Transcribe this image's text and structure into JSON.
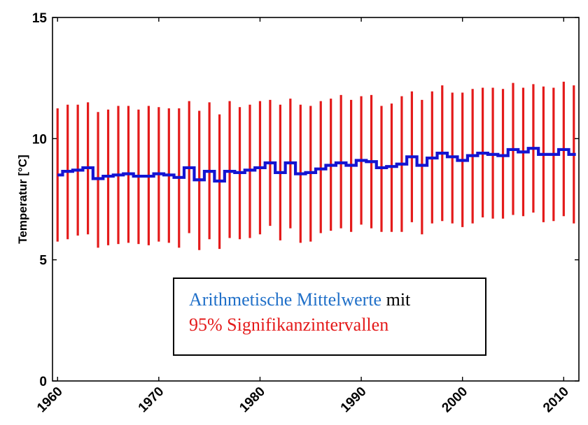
{
  "chart_data": {
    "type": "line",
    "xlabel": "",
    "ylabel": "Temperatur [°C]",
    "xlim": [
      1959.5,
      2011.5
    ],
    "ylim": [
      0,
      15
    ],
    "xticks": [
      "1960",
      "1970",
      "1980",
      "1990",
      "2000",
      "2010"
    ],
    "yticks": [
      "0",
      "5",
      "10",
      "15"
    ],
    "grid": false,
    "legend_position": "bottom-center",
    "legend": {
      "line1_blue": "Arithmetische Mittelwerte",
      "line1_black": " mit",
      "line2_red": "95% Signifikanzintervallen"
    },
    "colors": {
      "mean": "#1414d2",
      "interval": "#e41a1a",
      "legend_blue": "#1f6fc8",
      "legend_red": "#e41a1a"
    },
    "x": [
      1960,
      1961,
      1962,
      1963,
      1964,
      1965,
      1966,
      1967,
      1968,
      1969,
      1970,
      1971,
      1972,
      1973,
      1974,
      1975,
      1976,
      1977,
      1978,
      1979,
      1980,
      1981,
      1982,
      1983,
      1984,
      1985,
      1986,
      1987,
      1988,
      1989,
      1990,
      1991,
      1992,
      1993,
      1994,
      1995,
      1996,
      1997,
      1998,
      1999,
      2000,
      2001,
      2002,
      2003,
      2004,
      2005,
      2006,
      2007,
      2008,
      2009,
      2010,
      2011
    ],
    "series": [
      {
        "role": "mean",
        "values": [
          8.5,
          8.65,
          8.7,
          8.8,
          8.35,
          8.45,
          8.5,
          8.55,
          8.45,
          8.45,
          8.55,
          8.5,
          8.4,
          8.8,
          8.3,
          8.65,
          8.25,
          8.65,
          8.6,
          8.7,
          8.8,
          9.0,
          8.6,
          9.0,
          8.55,
          8.6,
          8.75,
          8.9,
          9.0,
          8.9,
          9.1,
          9.05,
          8.8,
          8.85,
          8.95,
          9.25,
          8.9,
          9.2,
          9.4,
          9.25,
          9.1,
          9.3,
          9.4,
          9.35,
          9.3,
          9.55,
          9.45,
          9.6,
          9.35,
          9.35,
          9.55,
          9.35
        ]
      },
      {
        "role": "interval_lower",
        "values": [
          5.75,
          5.85,
          6.0,
          6.05,
          5.5,
          5.6,
          5.65,
          5.7,
          5.65,
          5.6,
          5.75,
          5.7,
          5.5,
          6.1,
          5.4,
          5.85,
          5.45,
          5.9,
          5.85,
          5.9,
          6.05,
          6.4,
          5.8,
          6.3,
          5.7,
          5.75,
          6.1,
          6.2,
          6.3,
          6.15,
          6.45,
          6.3,
          6.15,
          6.15,
          6.15,
          6.55,
          6.05,
          6.5,
          6.6,
          6.5,
          6.35,
          6.5,
          6.75,
          6.7,
          6.7,
          6.85,
          6.8,
          6.95,
          6.55,
          6.6,
          6.8,
          6.5
        ]
      },
      {
        "role": "interval_upper",
        "values": [
          11.25,
          11.4,
          11.4,
          11.5,
          11.1,
          11.2,
          11.35,
          11.35,
          11.2,
          11.35,
          11.3,
          11.25,
          11.25,
          11.55,
          11.15,
          11.5,
          11.0,
          11.55,
          11.3,
          11.4,
          11.55,
          11.6,
          11.4,
          11.65,
          11.4,
          11.35,
          11.55,
          11.65,
          11.8,
          11.6,
          11.75,
          11.8,
          11.35,
          11.45,
          11.75,
          11.95,
          11.6,
          11.95,
          12.2,
          11.9,
          11.9,
          12.05,
          12.1,
          12.1,
          12.05,
          12.3,
          12.1,
          12.25,
          12.15,
          12.1,
          12.35,
          12.2
        ]
      }
    ]
  }
}
